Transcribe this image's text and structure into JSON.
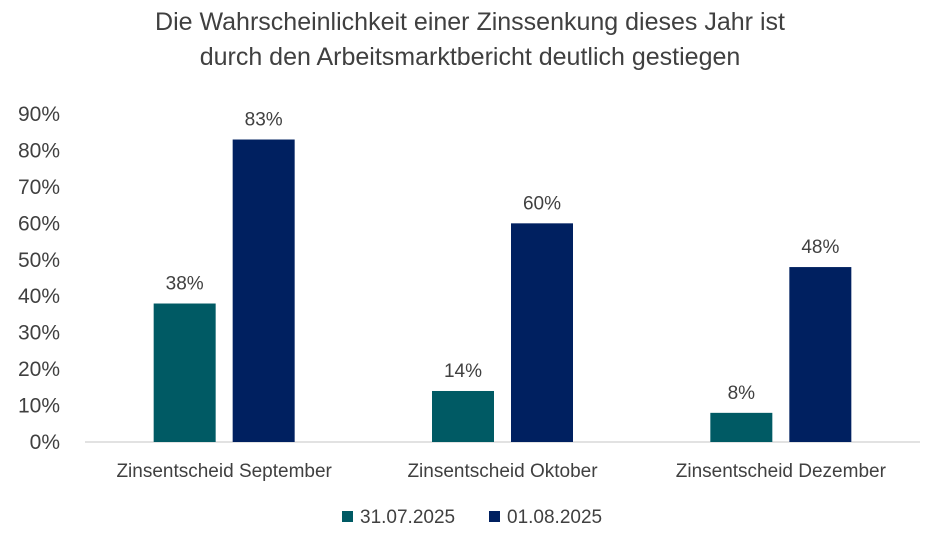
{
  "chart_data": {
    "type": "bar",
    "title_lines": [
      "Die Wahrscheinlichkeit einer Zinssenkung dieses Jahr ist",
      "durch den Arbeitsmarktbericht deutlich gestiegen"
    ],
    "categories": [
      "Zinsentscheid September",
      "Zinsentscheid Oktober",
      "Zinsentscheid Dezember"
    ],
    "series": [
      {
        "name": "31.07.2025",
        "values": [
          38,
          14,
          8
        ],
        "labels": [
          "38%",
          "14%",
          "8%"
        ],
        "color": "#005a64"
      },
      {
        "name": "01.08.2025",
        "values": [
          83,
          60,
          48
        ],
        "labels": [
          "83%",
          "60%",
          "48%"
        ],
        "color": "#002060"
      }
    ],
    "y_ticks": [
      {
        "value": 0,
        "label": "0%"
      },
      {
        "value": 10,
        "label": "10%"
      },
      {
        "value": 20,
        "label": "20%"
      },
      {
        "value": 30,
        "label": "30%"
      },
      {
        "value": 40,
        "label": "40%"
      },
      {
        "value": 50,
        "label": "50%"
      },
      {
        "value": 60,
        "label": "60%"
      },
      {
        "value": 70,
        "label": "70%"
      },
      {
        "value": 80,
        "label": "80%"
      },
      {
        "value": 90,
        "label": "90%"
      }
    ],
    "ylim": [
      0,
      90
    ],
    "grid": false,
    "legend_position": "bottom",
    "axis_color": "#d9d9d9"
  }
}
